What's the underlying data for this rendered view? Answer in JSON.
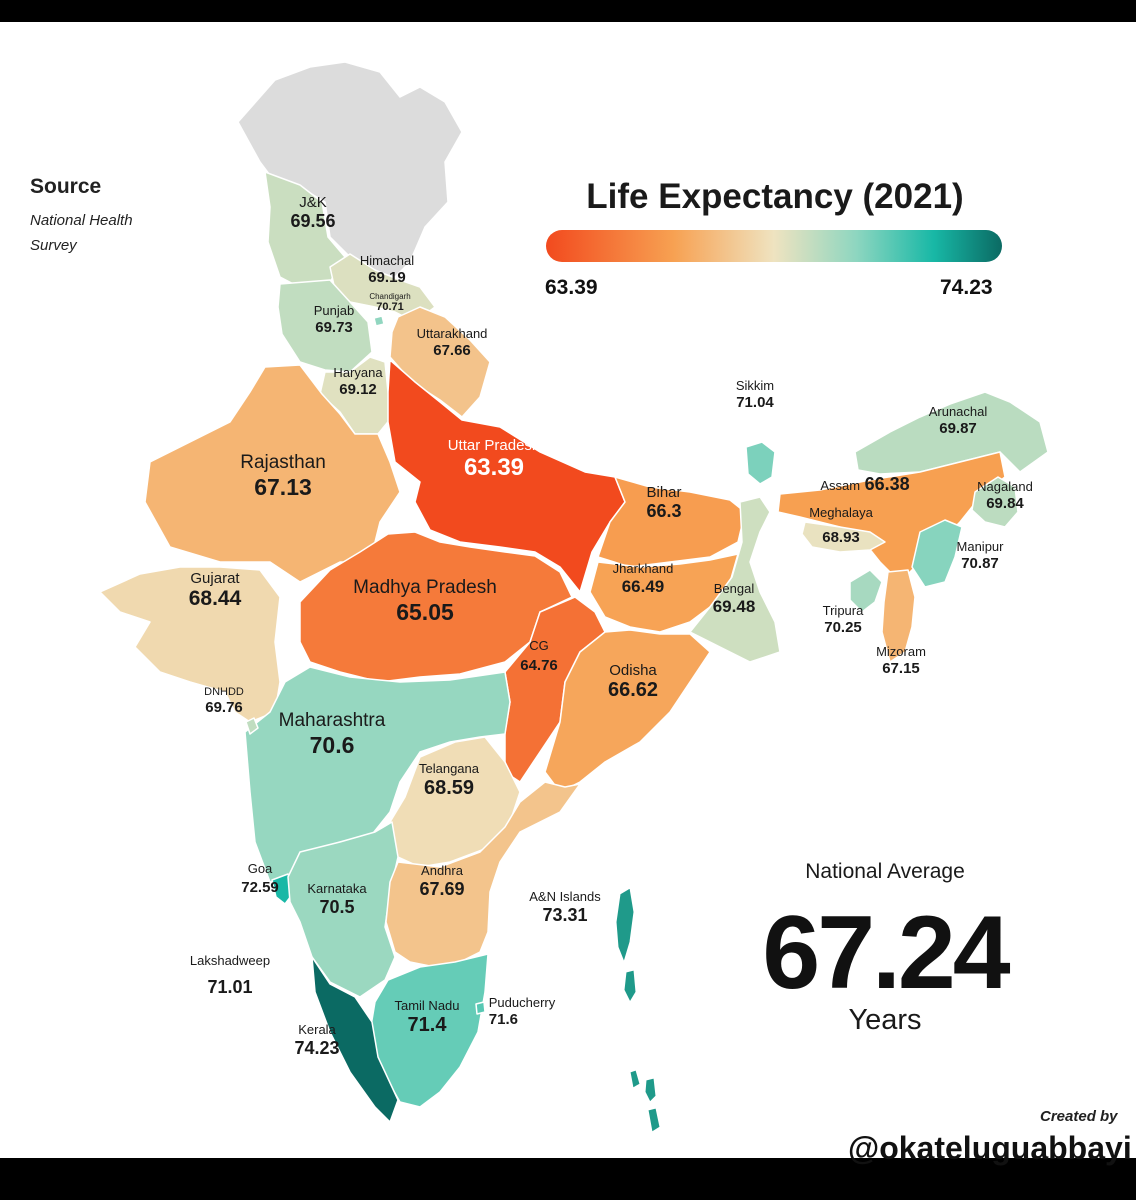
{
  "title": "Life Expectancy (2021)",
  "source": {
    "heading": "Source",
    "text": "National Health Survey"
  },
  "legend": {
    "min_label": "63.39",
    "max_label": "74.23",
    "min": 63.39,
    "max": 74.23
  },
  "national_average": {
    "label": "National Average",
    "value": "67.24",
    "unit": "Years"
  },
  "credit": {
    "line1": "Created by",
    "handle": "@okateluguabbayi"
  },
  "colors": {
    "low": "#f24a1e",
    "mid_low": "#f7a152",
    "mid": "#efe3c0",
    "mid_high": "#8ed6c0",
    "high": "#18b8a6",
    "max": "#0b6a63",
    "no_data": "#dcdcdc",
    "border": "#ffffff"
  },
  "regions": [
    {
      "key": "jk",
      "name": "J&K",
      "value": "69.56"
    },
    {
      "key": "himachal",
      "name": "Himachal",
      "value": "69.19"
    },
    {
      "key": "chandigarh",
      "name": "Chandigarh",
      "value": "70.71"
    },
    {
      "key": "punjab",
      "name": "Punjab",
      "value": "69.73"
    },
    {
      "key": "uttarakhand",
      "name": "Uttarakhand",
      "value": "67.66"
    },
    {
      "key": "haryana",
      "name": "Haryana",
      "value": "69.12"
    },
    {
      "key": "rajasthan",
      "name": "Rajasthan",
      "value": "67.13"
    },
    {
      "key": "uttar_pradesh",
      "name": "Uttar Pradesh",
      "value": "63.39"
    },
    {
      "key": "bihar",
      "name": "Bihar",
      "value": "66.3"
    },
    {
      "key": "sikkim",
      "name": "Sikkim",
      "value": "71.04"
    },
    {
      "key": "arunachal",
      "name": "Arunachal",
      "value": "69.87"
    },
    {
      "key": "assam",
      "name": "Assam",
      "value": "66.38"
    },
    {
      "key": "nagaland",
      "name": "Nagaland",
      "value": "69.84"
    },
    {
      "key": "meghalaya",
      "name": "Meghalaya",
      "value": "68.93"
    },
    {
      "key": "manipur",
      "name": "Manipur",
      "value": "70.87"
    },
    {
      "key": "tripura",
      "name": "Tripura",
      "value": "70.25"
    },
    {
      "key": "mizoram",
      "name": "Mizoram",
      "value": "67.15"
    },
    {
      "key": "gujarat",
      "name": "Gujarat",
      "value": "68.44"
    },
    {
      "key": "madhya_pradesh",
      "name": "Madhya Pradesh",
      "value": "65.05"
    },
    {
      "key": "jharkhand",
      "name": "Jharkhand",
      "value": "66.49"
    },
    {
      "key": "bengal",
      "name": "Bengal",
      "value": "69.48"
    },
    {
      "key": "chhattisgarh",
      "name": "CG",
      "value": "64.76"
    },
    {
      "key": "odisha",
      "name": "Odisha",
      "value": "66.62"
    },
    {
      "key": "dnhdd",
      "name": "DNHDD",
      "value": "69.76"
    },
    {
      "key": "maharashtra",
      "name": "Maharashtra",
      "value": "70.6"
    },
    {
      "key": "telangana",
      "name": "Telangana",
      "value": "68.59"
    },
    {
      "key": "goa",
      "name": "Goa",
      "value": "72.59"
    },
    {
      "key": "karnataka",
      "name": "Karnataka",
      "value": "70.5"
    },
    {
      "key": "andhra",
      "name": "Andhra",
      "value": "67.69"
    },
    {
      "key": "an_islands",
      "name": "A&N Islands",
      "value": "73.31"
    },
    {
      "key": "lakshadweep",
      "name": "Lakshadweep",
      "value": "71.01"
    },
    {
      "key": "puducherry",
      "name": "Puducherry",
      "value": "71.6"
    },
    {
      "key": "tamil_nadu",
      "name": "Tamil Nadu",
      "value": "71.4"
    },
    {
      "key": "kerala",
      "name": "Kerala",
      "value": "74.23"
    }
  ]
}
